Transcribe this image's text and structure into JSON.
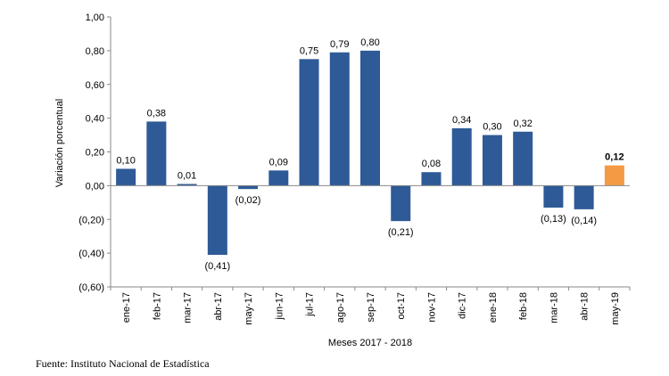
{
  "chart_data": {
    "type": "bar",
    "xlabel": "Meses 2017 - 2018",
    "ylabel": "Variación porcentual",
    "ylim": [
      -0.6,
      1.0
    ],
    "yticks": [
      1.0,
      0.8,
      0.6,
      0.4,
      0.2,
      0.0,
      -0.2,
      -0.4,
      -0.6
    ],
    "ytick_labels": [
      "1,00",
      "0,80",
      "0,60",
      "0,40",
      "0,20",
      "0,00",
      "(0,20)",
      "(0,40)",
      "(0,60)"
    ],
    "categories": [
      "ene-17",
      "feb-17",
      "mar-17",
      "abr-17",
      "may-17",
      "jun-17",
      "jul-17",
      "ago-17",
      "sep-17",
      "oct-17",
      "nov-17",
      "dic-17",
      "ene-18",
      "feb-18",
      "mar-18",
      "abr-18",
      "may-19"
    ],
    "values": [
      0.1,
      0.38,
      0.01,
      -0.41,
      -0.02,
      0.09,
      0.75,
      0.79,
      0.8,
      -0.21,
      0.08,
      0.34,
      0.3,
      0.32,
      -0.13,
      -0.14,
      0.12
    ],
    "value_labels": [
      "0,10",
      "0,38",
      "0,01",
      "(0,41)",
      "(0,02)",
      "0,09",
      "0,75",
      "0,79",
      "0,80",
      "(0,21)",
      "0,08",
      "0,34",
      "0,30",
      "0,32",
      "(0,13)",
      "(0,14)",
      "0,12"
    ],
    "grid": false,
    "bar_color": "#2E5A97",
    "highlight_color": "#F59A44",
    "highlight_index": 16
  },
  "footer": {
    "source": "Fuente: Instituto Nacional de Estadística"
  }
}
